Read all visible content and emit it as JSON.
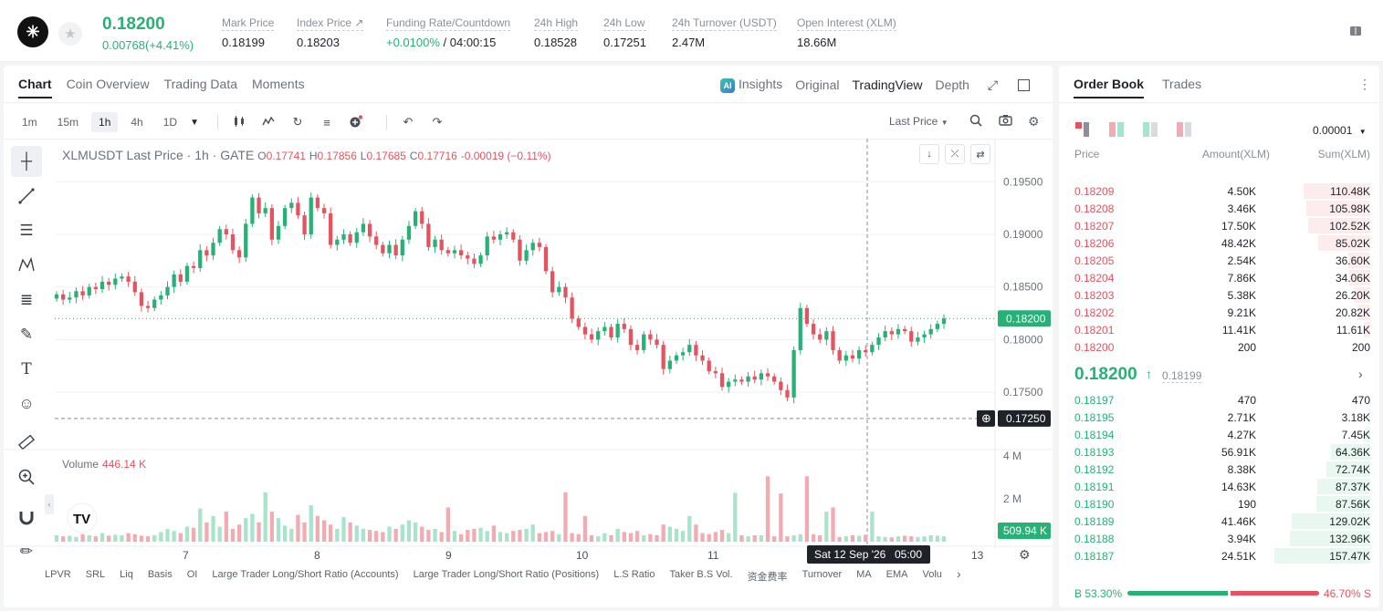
{
  "header": {
    "logo_glyph": "✳",
    "star_icon": "★",
    "last_price": "0.18200",
    "change": "0.00768(+4.41%)",
    "stats": [
      {
        "label": "Mark Price",
        "value": "0.18199"
      },
      {
        "label": "Index Price ↗",
        "value": "0.18203"
      },
      {
        "label": "Funding Rate/Countdown",
        "value_green": "+0.0100%",
        "value": " / 04:00:15"
      },
      {
        "label": "24h High",
        "value": "0.18528"
      },
      {
        "label": "24h Low",
        "value": "0.17251"
      },
      {
        "label": "24h Turnover (USDT)",
        "value": "2.47M"
      },
      {
        "label": "Open Interest (XLM)",
        "value": "18.66M"
      }
    ]
  },
  "chart_panel": {
    "tabs": [
      "Chart",
      "Coin Overview",
      "Trading Data",
      "Moments"
    ],
    "active_tab": "Chart",
    "view_tabs": {
      "insights": "Insights",
      "original": "Original",
      "tradingview": "TradingView",
      "depth": "Depth"
    },
    "ai_badge": "AI",
    "timeframes": [
      "1m",
      "15m",
      "1h",
      "4h",
      "1D"
    ],
    "active_timeframe": "1h",
    "price_type": "Last Price",
    "legend": {
      "symbol": "XLMUSDT Last Price · 1h · GATE",
      "o_label": "O",
      "o": "0.17741",
      "h_label": "H",
      "h": "0.17856",
      "l_label": "L",
      "l": "0.17685",
      "c_label": "C",
      "c": "0.17716",
      "chg": "-0.00019 (−0.11%)"
    },
    "volume_label": "Volume",
    "volume_value": "446.14 K",
    "indicators": [
      "LPVR",
      "SRL",
      "Liq",
      "Basis",
      "OI",
      "Large Trader Long/Short Ratio (Accounts)",
      "Large Trader Long/Short Ratio (Positions)",
      "L.S Ratio",
      "Taker B.S Vol.",
      "资金费率",
      "Turnover",
      "MA",
      "EMA",
      "Volu"
    ]
  },
  "chart_data": {
    "type": "candlestick",
    "title": "XLMUSDT Last Price · 1h · GATE",
    "y_ticks": [
      "0.19500",
      "0.19000",
      "0.18500",
      "0.18000",
      "0.17500"
    ],
    "y_tick_values": [
      0.195,
      0.19,
      0.185,
      0.18,
      0.175
    ],
    "ylim": [
      0.1705,
      0.1965
    ],
    "x_ticks": [
      "7",
      "8",
      "9",
      "10",
      "11",
      "13"
    ],
    "crosshair_time": "Sat 12 Sep '26",
    "crosshair_hour": "05:00",
    "last_price_label": "0.18200",
    "low_price_label": "0.17250",
    "last_price": 0.182,
    "low_price": 0.1725,
    "volume_ticks": [
      "4 M",
      "2 M"
    ],
    "volume_last_label": "509.94 K",
    "volume_max": 4000000,
    "closes": [
      0.1843,
      0.1838,
      0.184,
      0.1846,
      0.1842,
      0.185,
      0.1848,
      0.1855,
      0.1852,
      0.1858,
      0.186,
      0.1855,
      0.1845,
      0.1832,
      0.183,
      0.1838,
      0.1842,
      0.185,
      0.1862,
      0.1855,
      0.187,
      0.1868,
      0.1885,
      0.188,
      0.1892,
      0.1905,
      0.19,
      0.1885,
      0.1878,
      0.191,
      0.1935,
      0.192,
      0.1925,
      0.1895,
      0.1908,
      0.1925,
      0.193,
      0.1918,
      0.19,
      0.1935,
      0.1925,
      0.192,
      0.189,
      0.1895,
      0.19,
      0.1892,
      0.1902,
      0.191,
      0.1898,
      0.189,
      0.1882,
      0.189,
      0.188,
      0.1895,
      0.1908,
      0.1922,
      0.191,
      0.1888,
      0.1895,
      0.1885,
      0.1882,
      0.1885,
      0.188,
      0.1877,
      0.1872,
      0.188,
      0.1898,
      0.1895,
      0.19,
      0.1902,
      0.1895,
      0.1875,
      0.1885,
      0.1892,
      0.1888,
      0.1865,
      0.1845,
      0.185,
      0.184,
      0.182,
      0.1812,
      0.1805,
      0.18,
      0.1808,
      0.1812,
      0.1802,
      0.1815,
      0.181,
      0.1795,
      0.179,
      0.1805,
      0.18,
      0.1795,
      0.1772,
      0.178,
      0.1785,
      0.1788,
      0.1795,
      0.1785,
      0.178,
      0.177,
      0.1768,
      0.1755,
      0.176,
      0.1762,
      0.176,
      0.1765,
      0.1762,
      0.1768,
      0.1765,
      0.176,
      0.1752,
      0.1745,
      0.179,
      0.183,
      0.1815,
      0.1805,
      0.18,
      0.1808,
      0.179,
      0.178,
      0.1785,
      0.1782,
      0.179,
      0.1788,
      0.1795,
      0.1802,
      0.1808,
      0.1805,
      0.181,
      0.1808,
      0.1798,
      0.1802,
      0.1805,
      0.181,
      0.1815,
      0.182
    ],
    "volumes": [
      0.3,
      0.25,
      0.28,
      0.22,
      0.35,
      0.3,
      0.25,
      0.4,
      0.28,
      0.32,
      0.3,
      0.4,
      0.35,
      0.28,
      0.25,
      0.3,
      0.45,
      0.6,
      0.5,
      0.4,
      0.7,
      0.65,
      1.55,
      0.9,
      1.2,
      0.7,
      1.4,
      0.6,
      0.8,
      1.1,
      1.3,
      0.9,
      2.3,
      1.4,
      1.1,
      0.75,
      0.6,
      1.25,
      0.9,
      1.7,
      1.2,
      1.0,
      0.8,
      0.6,
      1.15,
      0.9,
      0.75,
      0.6,
      0.55,
      0.5,
      0.45,
      0.7,
      0.6,
      0.8,
      1.0,
      0.9,
      0.7,
      0.55,
      0.6,
      0.45,
      0.4,
      0.5,
      0.35,
      0.55,
      0.6,
      0.65,
      0.5,
      0.75,
      0.45,
      0.4,
      0.5,
      0.55,
      0.6,
      0.8,
      0.4,
      0.45,
      0.5,
      0.35,
      0.3,
      0.4,
      0.35,
      0.3,
      0.3,
      0.25,
      0.4,
      0.3,
      0.6,
      0.45,
      0.4,
      0.5,
      0.3,
      0.35,
      0.3,
      0.8,
      0.7,
      0.6,
      0.5,
      1.2,
      0.8,
      0.4,
      0.35,
      0.45,
      0.55,
      0.4,
      0.35,
      0.3,
      0.25,
      0.3,
      0.3,
      0.28,
      0.25,
      0.2,
      0.25,
      0.3,
      0.35,
      0.4,
      0.35,
      0.3,
      0.25,
      0.2,
      0.22,
      0.25,
      0.3,
      0.28,
      0.32,
      0.3,
      0.25,
      0.22,
      0.2,
      0.25,
      0.28,
      0.25,
      0.22,
      0.25,
      0.3,
      0.28,
      0.25,
      0.22,
      0.25
    ],
    "volume_overrides": {
      "60": 1.6,
      "78": 2.3,
      "81": 1.2,
      "104": 2.28,
      "109": 3.05,
      "111": 2.25,
      "115": 3.05,
      "118": 1.4,
      "119": 1.6,
      "125": 1.4
    }
  },
  "orderbook": {
    "tabs": [
      "Order Book",
      "Trades"
    ],
    "precision": "0.00001",
    "headers": {
      "price": "Price",
      "amount": "Amount(XLM)",
      "sum": "Sum(XLM)"
    },
    "asks": [
      {
        "price": "0.18209",
        "amount": "4.50K",
        "sum": "110.48K",
        "depth": 0.7
      },
      {
        "price": "0.18208",
        "amount": "3.46K",
        "sum": "105.98K",
        "depth": 0.67
      },
      {
        "price": "0.18207",
        "amount": "17.50K",
        "sum": "102.52K",
        "depth": 0.65
      },
      {
        "price": "0.18206",
        "amount": "48.42K",
        "sum": "85.02K",
        "depth": 0.54
      },
      {
        "price": "0.18205",
        "amount": "2.54K",
        "sum": "36.60K",
        "depth": 0.23
      },
      {
        "price": "0.18204",
        "amount": "7.86K",
        "sum": "34.06K",
        "depth": 0.22
      },
      {
        "price": "0.18203",
        "amount": "5.38K",
        "sum": "26.20K",
        "depth": 0.17
      },
      {
        "price": "0.18202",
        "amount": "9.21K",
        "sum": "20.82K",
        "depth": 0.13
      },
      {
        "price": "0.18201",
        "amount": "11.41K",
        "sum": "11.61K",
        "depth": 0.07
      },
      {
        "price": "0.18200",
        "amount": "200",
        "sum": "200",
        "depth": 0.0
      }
    ],
    "mid_price": "0.18200",
    "mid_arrow": "↑",
    "mid_mark": "0.18199",
    "bids": [
      {
        "price": "0.18197",
        "amount": "470",
        "sum": "470",
        "depth": 0.0
      },
      {
        "price": "0.18195",
        "amount": "2.71K",
        "sum": "3.18K",
        "depth": 0.02
      },
      {
        "price": "0.18194",
        "amount": "4.27K",
        "sum": "7.45K",
        "depth": 0.05
      },
      {
        "price": "0.18193",
        "amount": "56.91K",
        "sum": "64.36K",
        "depth": 0.41
      },
      {
        "price": "0.18192",
        "amount": "8.38K",
        "sum": "72.74K",
        "depth": 0.46
      },
      {
        "price": "0.18191",
        "amount": "14.63K",
        "sum": "87.37K",
        "depth": 0.55
      },
      {
        "price": "0.18190",
        "amount": "190",
        "sum": "87.56K",
        "depth": 0.56
      },
      {
        "price": "0.18189",
        "amount": "41.46K",
        "sum": "129.02K",
        "depth": 0.82
      },
      {
        "price": "0.18188",
        "amount": "3.94K",
        "sum": "132.96K",
        "depth": 0.84
      },
      {
        "price": "0.18187",
        "amount": "24.51K",
        "sum": "157.47K",
        "depth": 1.0
      }
    ],
    "buy_ratio": "B 53.30%",
    "sell_ratio": "46.70% S",
    "buy_fraction": 0.533
  },
  "colors": {
    "up": "#27b177",
    "down": "#e5535f",
    "up_vol": "#a8e3cb",
    "down_vol": "#f3aab1"
  }
}
